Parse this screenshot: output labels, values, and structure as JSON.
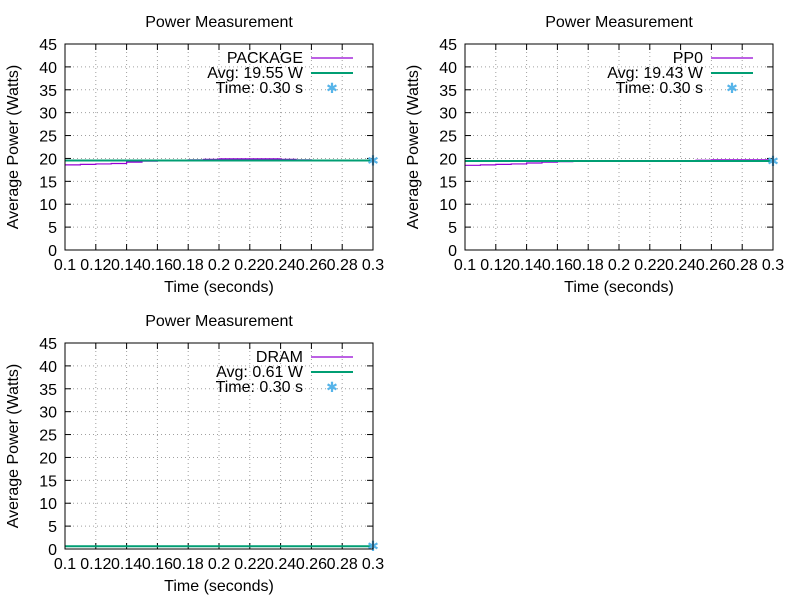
{
  "colors": {
    "measured": "#9400d3",
    "average": "#009e73",
    "time_marker": "#56b4e9"
  },
  "chart_data": [
    {
      "type": "line",
      "title": "Power Measurement",
      "xlabel": "Time (seconds)",
      "ylabel": "Average Power (Watts)",
      "xlim": [
        0.1,
        0.3
      ],
      "ylim": [
        0,
        45
      ],
      "x_ticks": [
        "0.1",
        "0.12",
        "0.14",
        "0.16",
        "0.18",
        "0.2",
        "0.22",
        "0.24",
        "0.26",
        "0.28",
        "0.3"
      ],
      "x_tick_values": [
        0.1,
        0.12,
        0.14,
        0.16,
        0.18,
        0.2,
        0.22,
        0.24,
        0.26,
        0.28,
        0.3
      ],
      "y_ticks": [
        "0",
        "5",
        "10",
        "15",
        "20",
        "25",
        "30",
        "35",
        "40",
        "45"
      ],
      "y_tick_values": [
        0,
        5,
        10,
        15,
        20,
        25,
        30,
        35,
        40,
        45
      ],
      "grid": true,
      "legend_position": "top-right",
      "series": [
        {
          "name": "PACKAGE",
          "style": "line",
          "x": [
            0.1,
            0.11,
            0.12,
            0.13,
            0.14,
            0.15,
            0.16,
            0.17,
            0.18,
            0.19,
            0.2,
            0.21,
            0.22,
            0.23,
            0.24,
            0.25,
            0.26,
            0.27,
            0.28,
            0.29,
            0.3
          ],
          "values": [
            18.6,
            18.7,
            18.8,
            18.9,
            19.2,
            19.4,
            19.5,
            19.6,
            19.7,
            19.8,
            19.9,
            19.9,
            19.9,
            19.9,
            19.8,
            19.7,
            19.6,
            19.6,
            19.6,
            19.6,
            19.6
          ]
        },
        {
          "name": "Avg: 19.55 W",
          "style": "hline",
          "value": 19.55
        },
        {
          "name": "Time: 0.30 s",
          "style": "point",
          "x": [
            0.3
          ],
          "values": [
            19.55
          ]
        }
      ]
    },
    {
      "type": "line",
      "title": "Power Measurement",
      "xlabel": "Time (seconds)",
      "ylabel": "Average Power (Watts)",
      "xlim": [
        0.1,
        0.3
      ],
      "ylim": [
        0,
        45
      ],
      "x_ticks": [
        "0.1",
        "0.12",
        "0.14",
        "0.16",
        "0.18",
        "0.2",
        "0.22",
        "0.24",
        "0.26",
        "0.28",
        "0.3"
      ],
      "x_tick_values": [
        0.1,
        0.12,
        0.14,
        0.16,
        0.18,
        0.2,
        0.22,
        0.24,
        0.26,
        0.28,
        0.3
      ],
      "y_ticks": [
        "0",
        "5",
        "10",
        "15",
        "20",
        "25",
        "30",
        "35",
        "40",
        "45"
      ],
      "y_tick_values": [
        0,
        5,
        10,
        15,
        20,
        25,
        30,
        35,
        40,
        45
      ],
      "grid": true,
      "legend_position": "top-right",
      "series": [
        {
          "name": "PP0",
          "style": "line",
          "x": [
            0.1,
            0.11,
            0.12,
            0.13,
            0.14,
            0.15,
            0.16,
            0.17,
            0.18,
            0.19,
            0.2,
            0.21,
            0.22,
            0.23,
            0.24,
            0.25,
            0.26,
            0.27,
            0.28,
            0.29,
            0.3
          ],
          "values": [
            18.5,
            18.6,
            18.7,
            18.8,
            19.0,
            19.2,
            19.3,
            19.4,
            19.5,
            19.5,
            19.5,
            19.5,
            19.5,
            19.5,
            19.5,
            19.6,
            19.7,
            19.7,
            19.7,
            19.7,
            19.7
          ]
        },
        {
          "name": "Avg: 19.43 W",
          "style": "hline",
          "value": 19.43
        },
        {
          "name": "Time: 0.30 s",
          "style": "point",
          "x": [
            0.3
          ],
          "values": [
            19.43
          ]
        }
      ]
    },
    {
      "type": "line",
      "title": "Power Measurement",
      "xlabel": "Time (seconds)",
      "ylabel": "Average Power (Watts)",
      "xlim": [
        0.1,
        0.3
      ],
      "ylim": [
        0,
        45
      ],
      "x_ticks": [
        "0.1",
        "0.12",
        "0.14",
        "0.16",
        "0.18",
        "0.2",
        "0.22",
        "0.24",
        "0.26",
        "0.28",
        "0.3"
      ],
      "x_tick_values": [
        0.1,
        0.12,
        0.14,
        0.16,
        0.18,
        0.2,
        0.22,
        0.24,
        0.26,
        0.28,
        0.3
      ],
      "y_ticks": [
        "0",
        "5",
        "10",
        "15",
        "20",
        "25",
        "30",
        "35",
        "40",
        "45"
      ],
      "y_tick_values": [
        0,
        5,
        10,
        15,
        20,
        25,
        30,
        35,
        40,
        45
      ],
      "grid": true,
      "legend_position": "top-right",
      "series": [
        {
          "name": "DRAM",
          "style": "line",
          "x": [
            0.1,
            0.12,
            0.14,
            0.16,
            0.18,
            0.2,
            0.22,
            0.24,
            0.26,
            0.28,
            0.3
          ],
          "values": [
            0.6,
            0.61,
            0.61,
            0.61,
            0.61,
            0.61,
            0.61,
            0.61,
            0.61,
            0.61,
            0.61
          ]
        },
        {
          "name": "Avg: 0.61 W",
          "style": "hline",
          "value": 0.61
        },
        {
          "name": "Time: 0.30 s",
          "style": "point",
          "x": [
            0.3
          ],
          "values": [
            0.61
          ]
        }
      ]
    }
  ]
}
